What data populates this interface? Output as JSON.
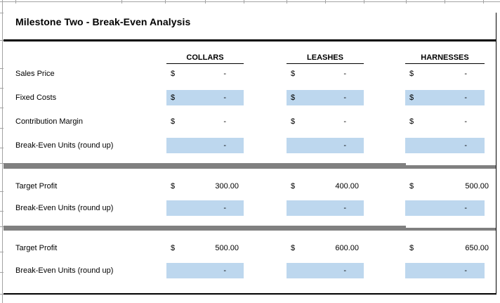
{
  "title": "Milestone Two - Break-Even Analysis",
  "currency": "$",
  "colors": {
    "input_cell_fill": "#BDD7EE",
    "separator_bar": "#808080",
    "border": "#000000"
  },
  "columns": {
    "c1": "COLLARS",
    "c2": "LEASHES",
    "c3": "HARNESSES"
  },
  "section1": {
    "sales_price": {
      "label": "Sales Price",
      "v1": "-",
      "v2": "-",
      "v3": "-"
    },
    "fixed_costs": {
      "label": "Fixed Costs",
      "v1": "-",
      "v2": "-",
      "v3": "-"
    },
    "contribution_margin": {
      "label": "Contribution Margin",
      "v1": "-",
      "v2": "-",
      "v3": "-"
    },
    "break_even_units": {
      "label": "Break-Even Units (round up)",
      "v1": "-",
      "v2": "-",
      "v3": "-"
    }
  },
  "section2": {
    "target_profit": {
      "label": "Target Profit",
      "v1": "300.00",
      "v2": "400.00",
      "v3": "500.00"
    },
    "break_even_units": {
      "label": "Break-Even Units (round up)",
      "v1": "-",
      "v2": "-",
      "v3": "-"
    }
  },
  "section3": {
    "target_profit": {
      "label": "Target Profit",
      "v1": "500.00",
      "v2": "600.00",
      "v3": "650.00"
    },
    "break_even_units": {
      "label": "Break-Even Units (round up)",
      "v1": "-",
      "v2": "-",
      "v3": "-"
    }
  }
}
